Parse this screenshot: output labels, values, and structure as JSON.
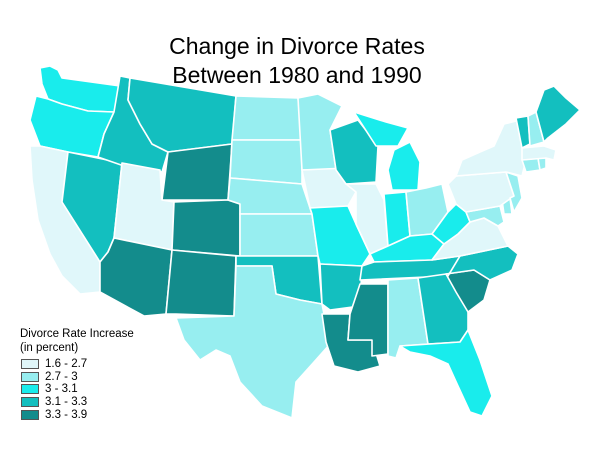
{
  "title": {
    "line1": "Change in Divorce Rates",
    "line2": "Between 1980 and 1990"
  },
  "legend": {
    "heading_line1": "Divorce Rate Increase",
    "heading_line2": "(in percent)",
    "classes": [
      {
        "label": "1.6 - 2.7",
        "color": "#e0f7fa"
      },
      {
        "label": "2.7 - 3",
        "color": "#97eef0"
      },
      {
        "label": "3 - 3.1",
        "color": "#19ecec"
      },
      {
        "label": "3.1 - 3.3",
        "color": "#13bfbf"
      },
      {
        "label": "3.3 - 3.9",
        "color": "#138c8c"
      }
    ]
  },
  "states": {
    "WA": 2,
    "OR": 2,
    "CA": 0,
    "ID": 3,
    "NV": 3,
    "UT": 0,
    "AZ": 4,
    "MT": 3,
    "WY": 4,
    "CO": 4,
    "NM": 4,
    "ND": 1,
    "SD": 1,
    "NE": 1,
    "KS": 1,
    "OK": 3,
    "TX": 1,
    "MN": 1,
    "IA": 0,
    "MO": 2,
    "AR": 3,
    "LA": 4,
    "WI": 3,
    "IL": 0,
    "MS": 4,
    "AL": 1,
    "TN": 3,
    "KY": 2,
    "IN": 2,
    "MI": 2,
    "OH": 1,
    "WV": 2,
    "VA": 0,
    "NC": 3,
    "SC": 4,
    "GA": 3,
    "FL": 2,
    "PA": 0,
    "NY": 0,
    "NJ": 1,
    "DE": 1,
    "MD": 1,
    "CT": 1,
    "RI": 1,
    "MA": 0,
    "VT": 3,
    "NH": 1,
    "ME": 3
  }
}
